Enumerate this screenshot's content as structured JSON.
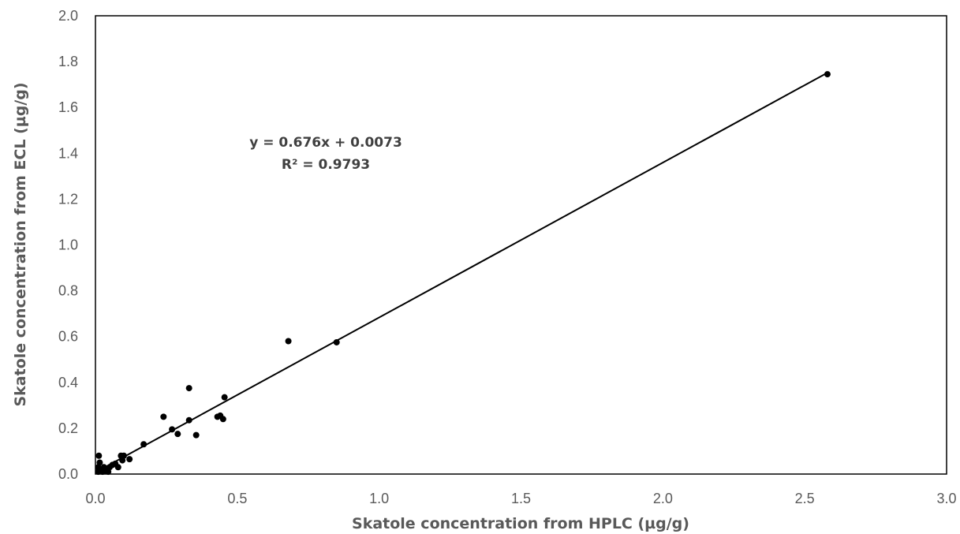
{
  "chart_data": {
    "type": "scatter",
    "title": "",
    "xlabel": "Skatole concentration from HPLC (µg/g)",
    "ylabel": "Skatole concentration from ECL (µg/g)",
    "xlim": [
      0,
      3.0
    ],
    "ylim": [
      0,
      2.0
    ],
    "x_ticks": [
      "0.0",
      "0.5",
      "1.0",
      "1.5",
      "2.0",
      "2.5",
      "3.0"
    ],
    "y_ticks": [
      "0.0",
      "0.2",
      "0.4",
      "0.6",
      "0.8",
      "1.0",
      "1.2",
      "1.4",
      "1.6",
      "1.8",
      "2.0"
    ],
    "grid": false,
    "series": [
      {
        "points": [
          [
            0.01,
            0.01
          ],
          [
            0.01,
            0.03
          ],
          [
            0.015,
            0.05
          ],
          [
            0.012,
            0.08
          ],
          [
            0.02,
            0.02
          ],
          [
            0.025,
            0.01
          ],
          [
            0.03,
            0.03
          ],
          [
            0.035,
            0.015
          ],
          [
            0.04,
            0.02
          ],
          [
            0.045,
            0.01
          ],
          [
            0.05,
            0.03
          ],
          [
            0.06,
            0.04
          ],
          [
            0.07,
            0.045
          ],
          [
            0.08,
            0.03
          ],
          [
            0.09,
            0.08
          ],
          [
            0.095,
            0.06
          ],
          [
            0.1,
            0.08
          ],
          [
            0.12,
            0.065
          ],
          [
            0.17,
            0.13
          ],
          [
            0.24,
            0.25
          ],
          [
            0.27,
            0.195
          ],
          [
            0.29,
            0.175
          ],
          [
            0.33,
            0.235
          ],
          [
            0.33,
            0.375
          ],
          [
            0.355,
            0.17
          ],
          [
            0.43,
            0.25
          ],
          [
            0.44,
            0.255
          ],
          [
            0.45,
            0.24
          ],
          [
            0.455,
            0.335
          ],
          [
            0.68,
            0.58
          ],
          [
            0.85,
            0.575
          ],
          [
            2.58,
            1.745
          ]
        ]
      }
    ],
    "trendline": {
      "slope": 0.676,
      "intercept": 0.0073,
      "x_range": [
        0,
        2.58
      ],
      "equation_text": "y = 0.676x + 0.0073",
      "r2_text": "R² = 0.9793"
    },
    "colors": {
      "points": "#000000",
      "trendline": "#000000",
      "tick_text": "#595959",
      "title_text": "#595959"
    }
  }
}
